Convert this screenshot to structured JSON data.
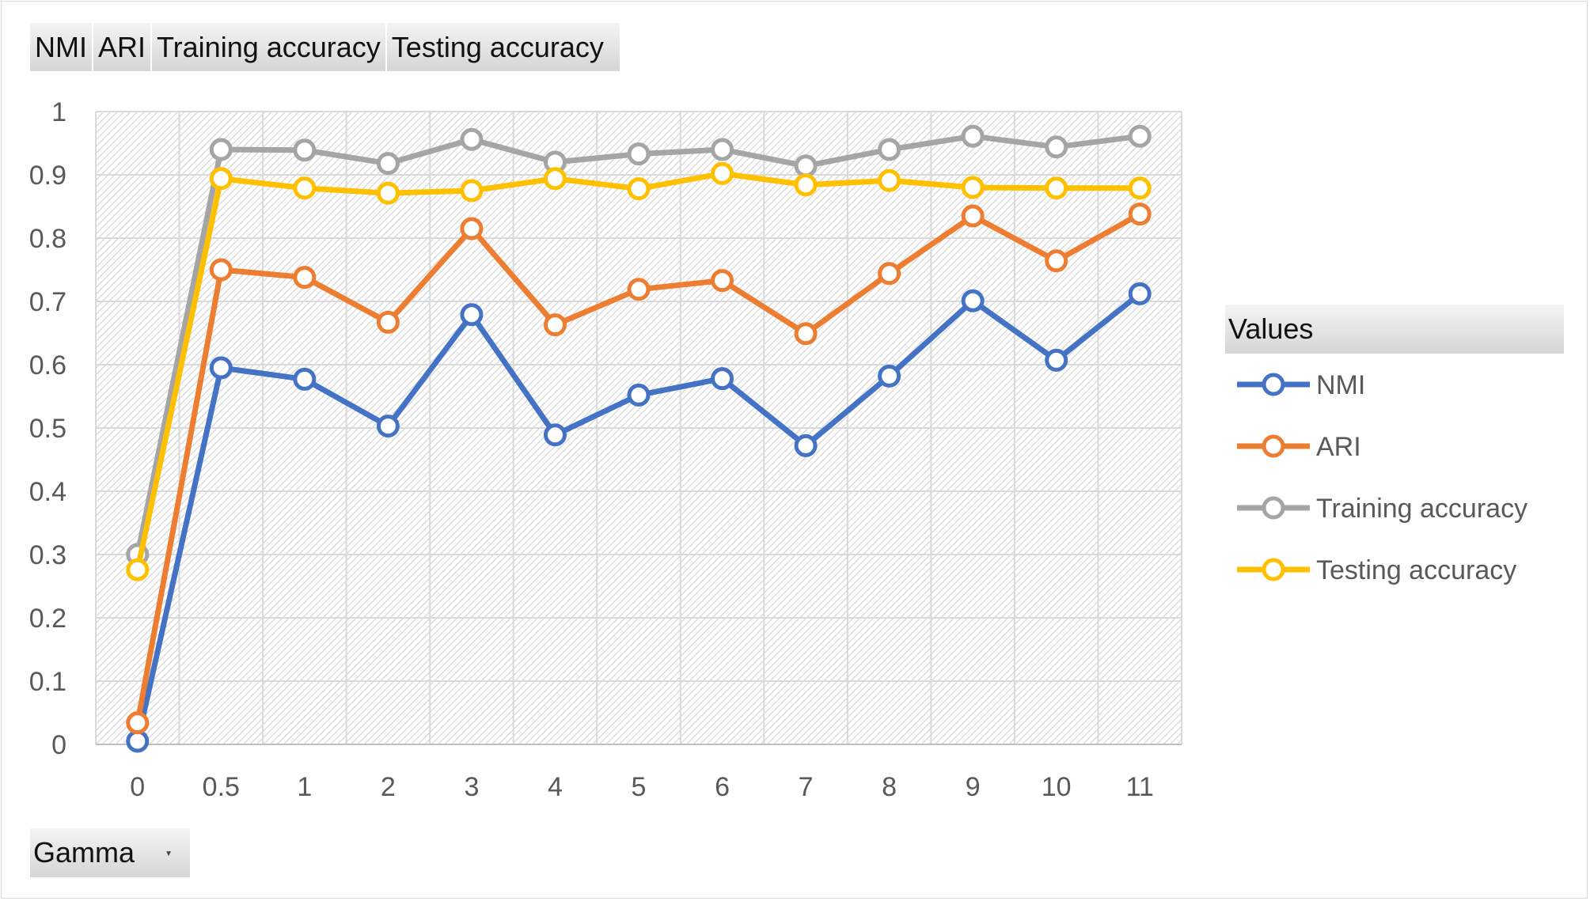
{
  "field_buttons": {
    "nmi": "NMI",
    "ari": "ARI",
    "training": "Training accuracy",
    "testing": "Testing accuracy"
  },
  "axis_field": {
    "label": "Gamma",
    "icon": "dropdown-arrow-icon"
  },
  "legend": {
    "title": "Values"
  },
  "chart_data": {
    "type": "line",
    "title": "",
    "xlabel": "",
    "ylabel": "",
    "categories": [
      "0",
      "0.5",
      "1",
      "2",
      "3",
      "4",
      "5",
      "6",
      "7",
      "8",
      "9",
      "10",
      "11"
    ],
    "ylim": [
      0,
      1
    ],
    "yticks": [
      "0",
      "0.1",
      "0.2",
      "0.3",
      "0.4",
      "0.5",
      "0.6",
      "0.7",
      "0.8",
      "0.9",
      "1"
    ],
    "grid": true,
    "legend_position": "right",
    "series": [
      {
        "name": "NMI",
        "color": "#4472C4",
        "values": [
          0.005,
          0.595,
          0.577,
          0.503,
          0.679,
          0.489,
          0.552,
          0.578,
          0.472,
          0.582,
          0.701,
          0.607,
          0.712
        ]
      },
      {
        "name": "ARI",
        "color": "#ED7D31",
        "values": [
          0.034,
          0.75,
          0.738,
          0.667,
          0.815,
          0.663,
          0.719,
          0.733,
          0.649,
          0.744,
          0.835,
          0.764,
          0.838
        ]
      },
      {
        "name": "Training accuracy",
        "color": "#A5A5A5",
        "values": [
          0.3,
          0.94,
          0.939,
          0.918,
          0.956,
          0.92,
          0.933,
          0.94,
          0.914,
          0.94,
          0.961,
          0.944,
          0.961
        ]
      },
      {
        "name": "Testing accuracy",
        "color": "#FFC000",
        "values": [
          0.276,
          0.894,
          0.879,
          0.871,
          0.875,
          0.894,
          0.878,
          0.902,
          0.884,
          0.891,
          0.88,
          0.879,
          0.879
        ]
      }
    ]
  }
}
